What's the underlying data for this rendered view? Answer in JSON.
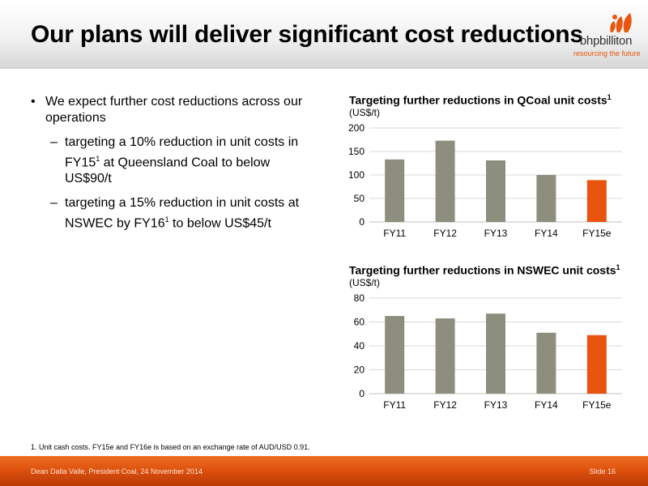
{
  "slide": {
    "title": "Our plans will deliver significant cost reductions",
    "logo_name": "bhpbilliton",
    "logo_tagline": "resourcing the future"
  },
  "bullets": {
    "main": "We expect further cost reductions across our operations",
    "sub1_a": "targeting a 10% reduction in unit costs in FY15",
    "sub1_sup": "1",
    "sub1_b": " at Queensland Coal to below US$90/t",
    "sub2_a": "targeting a 15% reduction in unit costs at NSWEC by FY16",
    "sub2_sup": "1",
    "sub2_b": " to below US$45/t"
  },
  "colors": {
    "historical_bar": "#8e8e7e",
    "estimate_bar": "#e8530e",
    "gridline": "#d9d9d9",
    "footer_orange": "#dc4f0d"
  },
  "chart_data": [
    {
      "type": "bar",
      "title": "Targeting further reductions in QCoal unit costs",
      "title_sup": "1",
      "ylabel": "(US$/t)",
      "categories": [
        "FY11",
        "FY12",
        "FY13",
        "FY14",
        "FY15e"
      ],
      "values": [
        133,
        173,
        131,
        100,
        89
      ],
      "ylim": [
        0,
        200
      ],
      "yticks": [
        0,
        50,
        100,
        150,
        200
      ],
      "highlight_index": 4,
      "grid": true
    },
    {
      "type": "bar",
      "title": "Targeting further reductions in NSWEC unit costs",
      "title_sup": "1",
      "ylabel": "(US$/t)",
      "categories": [
        "FY11",
        "FY12",
        "FY13",
        "FY14",
        "FY15e"
      ],
      "values": [
        65,
        63,
        67,
        51,
        49
      ],
      "ylim": [
        0,
        80
      ],
      "yticks": [
        0,
        20,
        40,
        60,
        80
      ],
      "highlight_index": 4,
      "grid": true
    }
  ],
  "footnote": "1.  Unit cash costs. FY15e and FY16e is based on an exchange rate of AUD/USD 0.91.",
  "footer": {
    "left": "Dean Dalla Valle, President Coal, 24 November 2014",
    "right": "Slide 16"
  }
}
